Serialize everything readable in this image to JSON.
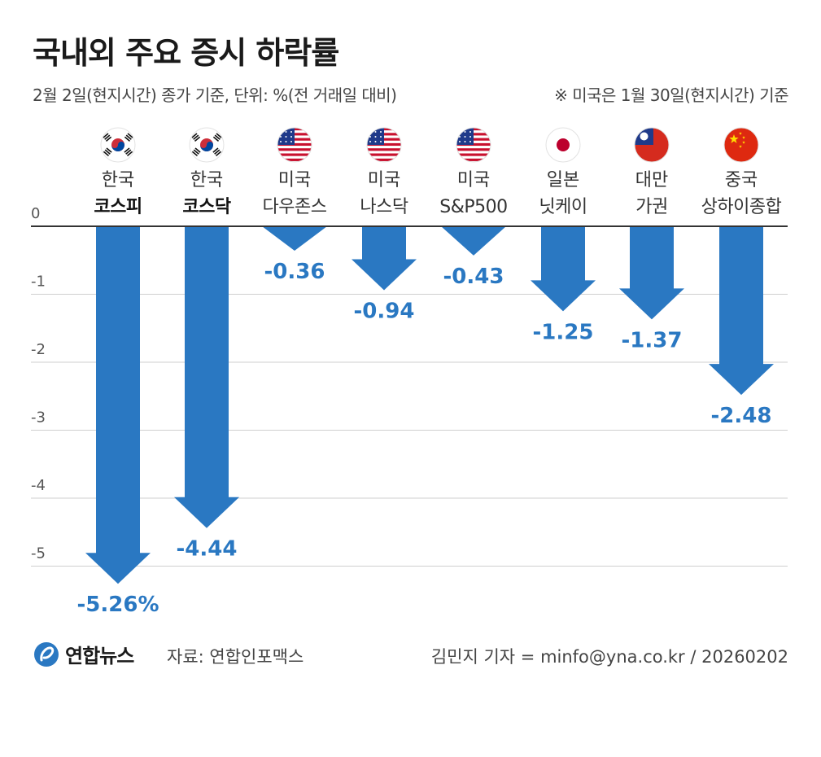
{
  "header": {
    "title": "국내외 주요 증시 하락률",
    "subtitle": "2월 2일(현지시간) 종가 기준, 단위: %(전 거래일 대비)",
    "note": "※ 미국은 1월 30일(현지시간) 기준"
  },
  "footer": {
    "logo_text": "연합뉴스",
    "source": "자료: 연합인포맥스",
    "credit": "김민지 기자 = minfo@yna.co.kr / 20260202"
  },
  "chart_data": {
    "type": "bar",
    "orientation": "vertical-negative",
    "categories": [
      {
        "line1": "한국",
        "line2": "코스피",
        "bold": true,
        "flag": "korea-flag-icon"
      },
      {
        "line1": "한국",
        "line2": "코스닥",
        "bold": true,
        "flag": "korea-flag-icon"
      },
      {
        "line1": "미국",
        "line2": "다우존스",
        "bold": false,
        "flag": "usa-flag-icon"
      },
      {
        "line1": "미국",
        "line2": "나스닥",
        "bold": false,
        "flag": "usa-flag-icon"
      },
      {
        "line1": "미국",
        "line2": "S&P500",
        "bold": false,
        "flag": "usa-flag-icon"
      },
      {
        "line1": "일본",
        "line2": "닛케이",
        "bold": false,
        "flag": "japan-flag-icon"
      },
      {
        "line1": "대만",
        "line2": "가권",
        "bold": false,
        "flag": "taiwan-flag-icon"
      },
      {
        "line1": "중국",
        "line2": "상하이종합",
        "bold": false,
        "flag": "china-flag-icon"
      }
    ],
    "values": [
      -5.26,
      -4.44,
      -0.36,
      -0.94,
      -0.43,
      -1.25,
      -1.37,
      -2.48
    ],
    "value_labels": [
      "-5.26%",
      "-4.44",
      "-0.36",
      "-0.94",
      "-0.43",
      "-1.25",
      "-1.37",
      "-2.48"
    ],
    "y_ticks": [
      "0",
      "-1",
      "-2",
      "-3",
      "-4",
      "-5"
    ],
    "y_tick_values": [
      0,
      -1,
      -2,
      -3,
      -4,
      -5
    ],
    "ylim": [
      -5.26,
      0
    ],
    "grid": true,
    "colors": {
      "arrow": "#2a78c2",
      "label": "#2a78c2",
      "grid": "#cfcfcf",
      "axis": "#333333"
    }
  }
}
